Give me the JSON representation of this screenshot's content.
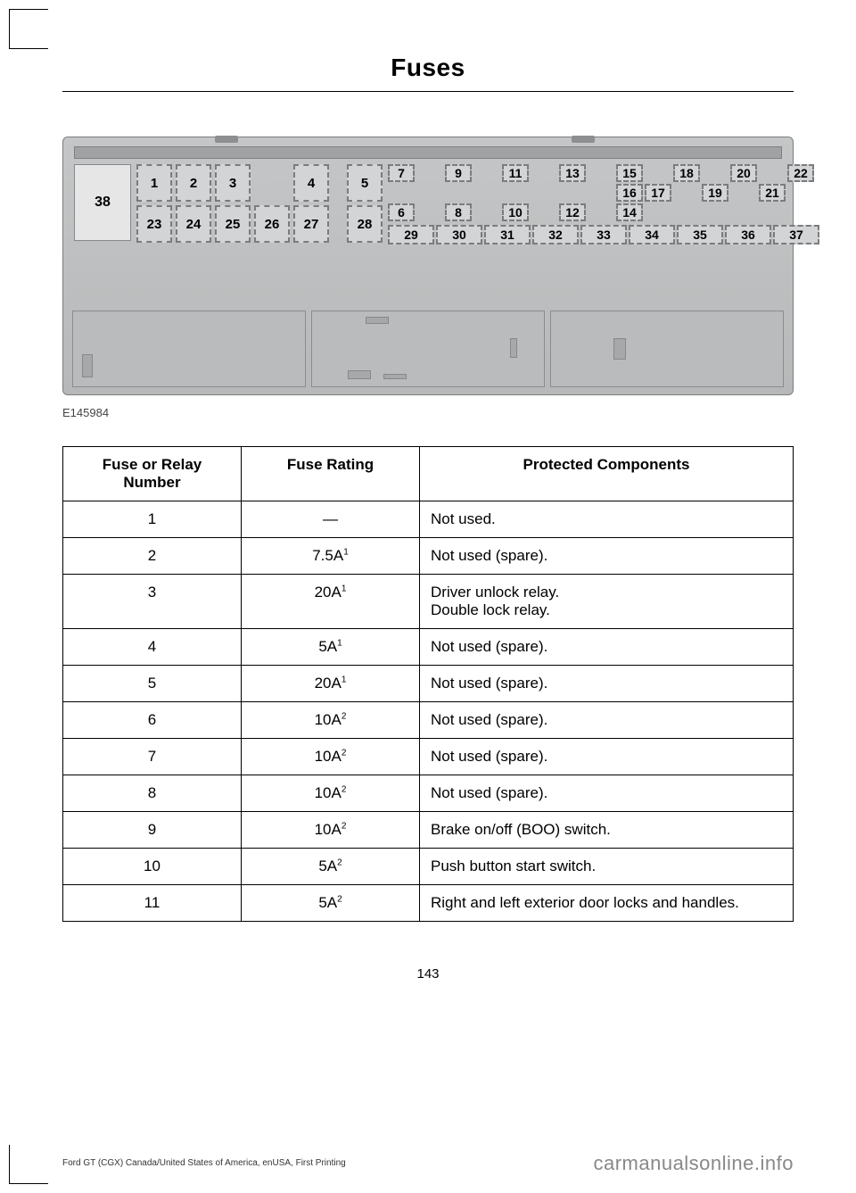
{
  "page": {
    "title": "Fuses",
    "diagram_ref": "E145984",
    "page_number": "143",
    "footer_left": "Ford GT (CGX) Canada/United States of America, enUSA, First Printing",
    "footer_right": "carmanualsonline.info"
  },
  "fusebox": {
    "block38": "38",
    "left_top": [
      "1",
      "2",
      "3",
      "",
      "4",
      "",
      "5"
    ],
    "left_bottom": [
      "23",
      "24",
      "25",
      "26",
      "27",
      "",
      "28"
    ],
    "right_r1": [
      "7",
      "",
      "9",
      "",
      "11",
      "",
      "13",
      "",
      "15"
    ],
    "right_r2": [
      "",
      "",
      "",
      "",
      "",
      "",
      "",
      "",
      "16"
    ],
    "right_r3": [
      "6",
      "",
      "8",
      "",
      "10",
      "",
      "12",
      "",
      "14"
    ],
    "right_col2_r1": [
      "",
      "18",
      "",
      "20",
      "",
      "22"
    ],
    "right_col2_r2": [
      "17",
      "",
      "19",
      "",
      "21",
      ""
    ],
    "right_bottom": [
      "29",
      "30",
      "31",
      "32",
      "33",
      "34",
      "35",
      "36",
      "37"
    ],
    "colors": {
      "panel": "#b6b8b9",
      "slot_bg": "#d2d4d5",
      "slot_border": "#7a7c7d"
    }
  },
  "table": {
    "headers": [
      "Fuse or Relay Number",
      "Fuse Rating",
      "Protected Components"
    ],
    "rows": [
      {
        "num": "1",
        "rating": "—",
        "sup": "",
        "comp": "Not used."
      },
      {
        "num": "2",
        "rating": "7.5A",
        "sup": "1",
        "comp": "Not used (spare)."
      },
      {
        "num": "3",
        "rating": "20A",
        "sup": "1",
        "comp": "Driver unlock relay.\nDouble lock relay."
      },
      {
        "num": "4",
        "rating": "5A",
        "sup": "1",
        "comp": "Not used (spare)."
      },
      {
        "num": "5",
        "rating": "20A",
        "sup": "1",
        "comp": "Not used (spare)."
      },
      {
        "num": "6",
        "rating": "10A",
        "sup": "2",
        "comp": "Not used (spare)."
      },
      {
        "num": "7",
        "rating": "10A",
        "sup": "2",
        "comp": "Not used (spare)."
      },
      {
        "num": "8",
        "rating": "10A",
        "sup": "2",
        "comp": "Not used (spare)."
      },
      {
        "num": "9",
        "rating": "10A",
        "sup": "2",
        "comp": "Brake on/off (BOO) switch."
      },
      {
        "num": "10",
        "rating": "5A",
        "sup": "2",
        "comp": "Push button start switch."
      },
      {
        "num": "11",
        "rating": "5A",
        "sup": "2",
        "comp": "Right and left exterior door locks and handles."
      }
    ]
  }
}
